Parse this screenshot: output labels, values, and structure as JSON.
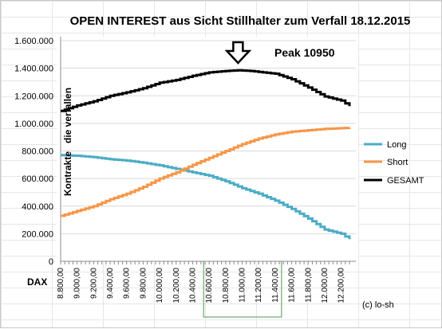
{
  "chart_data": {
    "type": "line",
    "title": "OPEN INTEREST aus Sicht Stillhalter zum Verfall 18.12.2015",
    "annotation": "Peak 10950",
    "ylabel": "Kontrakte   die verfallen",
    "xlabel": "DAX",
    "copyright": "(c) lo-sh",
    "ylim": [
      0,
      1600000
    ],
    "xlim": [
      8800,
      12300
    ],
    "grid": true,
    "legend_position": "right",
    "yticks": [
      {
        "value": 0,
        "label": "0"
      },
      {
        "value": 200000,
        "label": "200.000"
      },
      {
        "value": 400000,
        "label": "400.000"
      },
      {
        "value": 600000,
        "label": "600.000"
      },
      {
        "value": 800000,
        "label": "800.000"
      },
      {
        "value": 1000000,
        "label": "1.000.000"
      },
      {
        "value": 1200000,
        "label": "1.200.000"
      },
      {
        "value": 1400000,
        "label": "1.400.000"
      },
      {
        "value": 1600000,
        "label": "1.600.000"
      }
    ],
    "xticks": [
      {
        "value": 8800,
        "label": "8.800,00"
      },
      {
        "value": 9000,
        "label": "9.000,00"
      },
      {
        "value": 9200,
        "label": "9.200,00"
      },
      {
        "value": 9400,
        "label": "9.400,00"
      },
      {
        "value": 9600,
        "label": "9.600,00"
      },
      {
        "value": 9800,
        "label": "9.800,00"
      },
      {
        "value": 10000,
        "label": "10.000,00"
      },
      {
        "value": 10200,
        "label": "10.200,00"
      },
      {
        "value": 10400,
        "label": "10.400,00"
      },
      {
        "value": 10600,
        "label": "10.600,00"
      },
      {
        "value": 10800,
        "label": "10.800,00"
      },
      {
        "value": 11000,
        "label": "11.000,00"
      },
      {
        "value": 11200,
        "label": "11.200,00"
      },
      {
        "value": 11400,
        "label": "11.400,00"
      },
      {
        "value": 11600,
        "label": "11.600,00"
      },
      {
        "value": 11800,
        "label": "11.800,00"
      },
      {
        "value": 12000,
        "label": "12.000,00"
      },
      {
        "value": 12200,
        "label": "12.200,00"
      }
    ],
    "highlight_range": [
      10600,
      11400
    ],
    "peak_x": 10950,
    "series": [
      {
        "name": "Long",
        "color": "#4bacc6",
        "points": [
          [
            8800,
            770000
          ],
          [
            9000,
            765000
          ],
          [
            9200,
            755000
          ],
          [
            9400,
            740000
          ],
          [
            9600,
            730000
          ],
          [
            9800,
            715000
          ],
          [
            10000,
            695000
          ],
          [
            10200,
            670000
          ],
          [
            10400,
            645000
          ],
          [
            10600,
            620000
          ],
          [
            10800,
            580000
          ],
          [
            11000,
            530000
          ],
          [
            11200,
            490000
          ],
          [
            11400,
            440000
          ],
          [
            11600,
            380000
          ],
          [
            11800,
            310000
          ],
          [
            12000,
            230000
          ],
          [
            12200,
            200000
          ],
          [
            12300,
            160000
          ]
        ]
      },
      {
        "name": "Short",
        "color": "#f79646",
        "points": [
          [
            8800,
            330000
          ],
          [
            9000,
            365000
          ],
          [
            9200,
            400000
          ],
          [
            9400,
            450000
          ],
          [
            9600,
            490000
          ],
          [
            9800,
            540000
          ],
          [
            10000,
            600000
          ],
          [
            10200,
            645000
          ],
          [
            10400,
            700000
          ],
          [
            10600,
            750000
          ],
          [
            10800,
            800000
          ],
          [
            11000,
            850000
          ],
          [
            11200,
            890000
          ],
          [
            11400,
            920000
          ],
          [
            11600,
            940000
          ],
          [
            11800,
            950000
          ],
          [
            12000,
            960000
          ],
          [
            12200,
            965000
          ],
          [
            12300,
            968000
          ]
        ]
      },
      {
        "name": "GESAMT",
        "color": "#000000",
        "points": [
          [
            8800,
            1090000
          ],
          [
            9000,
            1130000
          ],
          [
            9200,
            1160000
          ],
          [
            9400,
            1200000
          ],
          [
            9600,
            1225000
          ],
          [
            9800,
            1255000
          ],
          [
            10000,
            1295000
          ],
          [
            10200,
            1315000
          ],
          [
            10400,
            1345000
          ],
          [
            10600,
            1370000
          ],
          [
            10800,
            1380000
          ],
          [
            10950,
            1385000
          ],
          [
            11100,
            1380000
          ],
          [
            11400,
            1360000
          ],
          [
            11600,
            1320000
          ],
          [
            11800,
            1260000
          ],
          [
            12000,
            1195000
          ],
          [
            12200,
            1165000
          ],
          [
            12300,
            1125000
          ]
        ]
      }
    ]
  }
}
